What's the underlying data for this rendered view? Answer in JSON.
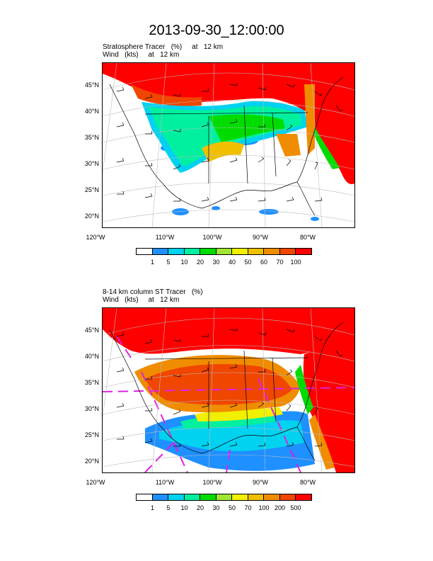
{
  "main_title": "2013-09-30_12:00:00",
  "panels": [
    {
      "title_line1": "Stratosphere Tracer   (%)     at   12 km",
      "title_line2": "Wind   (kts)     at   12 km",
      "lat_labels": [
        "45°N",
        "40°N",
        "35°N",
        "30°N",
        "25°N",
        "20°N"
      ],
      "lon_labels": [
        "120°W",
        "110°W",
        "100°W",
        "90°W",
        "80°W"
      ],
      "colorbar": {
        "labels": [
          "1",
          "5",
          "10",
          "20",
          "30",
          "40",
          "50",
          "60",
          "70",
          "100"
        ],
        "colors": [
          "#ffffff",
          "#1e90ff",
          "#00d2f0",
          "#00f0a0",
          "#00dc00",
          "#a0e632",
          "#f0f000",
          "#f0c000",
          "#f08c00",
          "#f04600",
          "#ff0000"
        ]
      }
    },
    {
      "title_line1": "8-14 km column ST Tracer   (%)",
      "title_line2": "Wind   (kts)     at   12 km",
      "lat_labels": [
        "45°N",
        "40°N",
        "35°N",
        "30°N",
        "25°N",
        "20°N"
      ],
      "lon_labels": [
        "120°W",
        "110°W",
        "100°W",
        "90°W",
        "80°W"
      ],
      "colorbar": {
        "labels": [
          "1",
          "5",
          "10",
          "20",
          "30",
          "50",
          "70",
          "100",
          "200",
          "500"
        ],
        "colors": [
          "#ffffff",
          "#1e90ff",
          "#00d2f0",
          "#00f0a0",
          "#00dc00",
          "#a0e632",
          "#f0f000",
          "#f0c000",
          "#f08c00",
          "#f04600",
          "#ff0000"
        ]
      }
    }
  ]
}
